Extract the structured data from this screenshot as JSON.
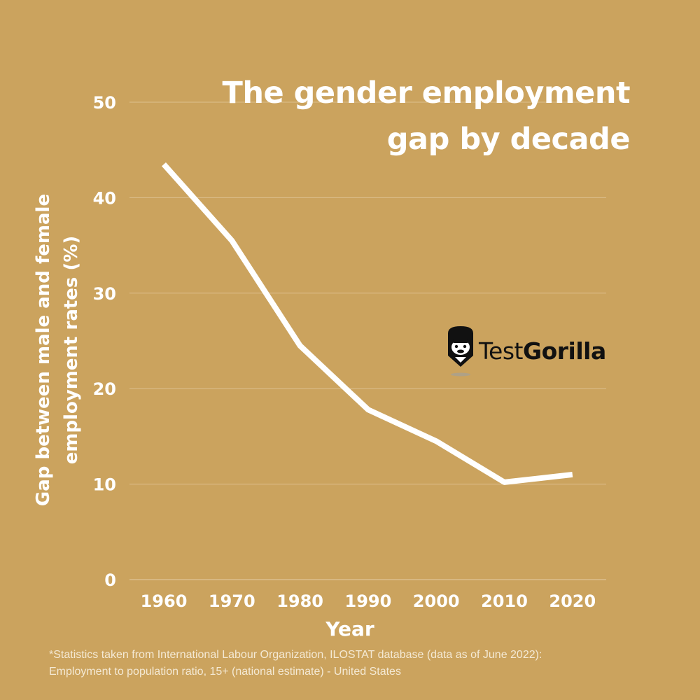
{
  "page": {
    "background": "#CBA35E",
    "title_lines": [
      "The gender employment",
      "gap by decade"
    ],
    "footnote_lines": [
      "*Statistics taken from International Labour Organization, ILOSTAT database (data as of June 2022):",
      "Employment to population ratio, 15+ (national estimate) - United States"
    ],
    "brand": {
      "name_light": "Test",
      "name_bold": "Gorilla",
      "icon": "gorilla-logo-icon"
    }
  },
  "chart_data": {
    "type": "line",
    "title": "The gender employment gap by decade",
    "xlabel": "Year",
    "ylabel_lines": [
      "Gap between male and female",
      "employment rates (%)"
    ],
    "categories": [
      "1960",
      "1970",
      "1980",
      "1990",
      "2000",
      "2010",
      "2020"
    ],
    "yticks": [
      "0",
      "10",
      "20",
      "30",
      "40",
      "50"
    ],
    "ylim": [
      0,
      50
    ],
    "grid": true,
    "series": [
      {
        "values": [
          43.5,
          35.5,
          24.5,
          17.8,
          14.5,
          10.2,
          11.0
        ]
      }
    ],
    "colors": {
      "line": "#ffffff",
      "grid": "#DDC08E",
      "text": "#ffffff"
    }
  }
}
